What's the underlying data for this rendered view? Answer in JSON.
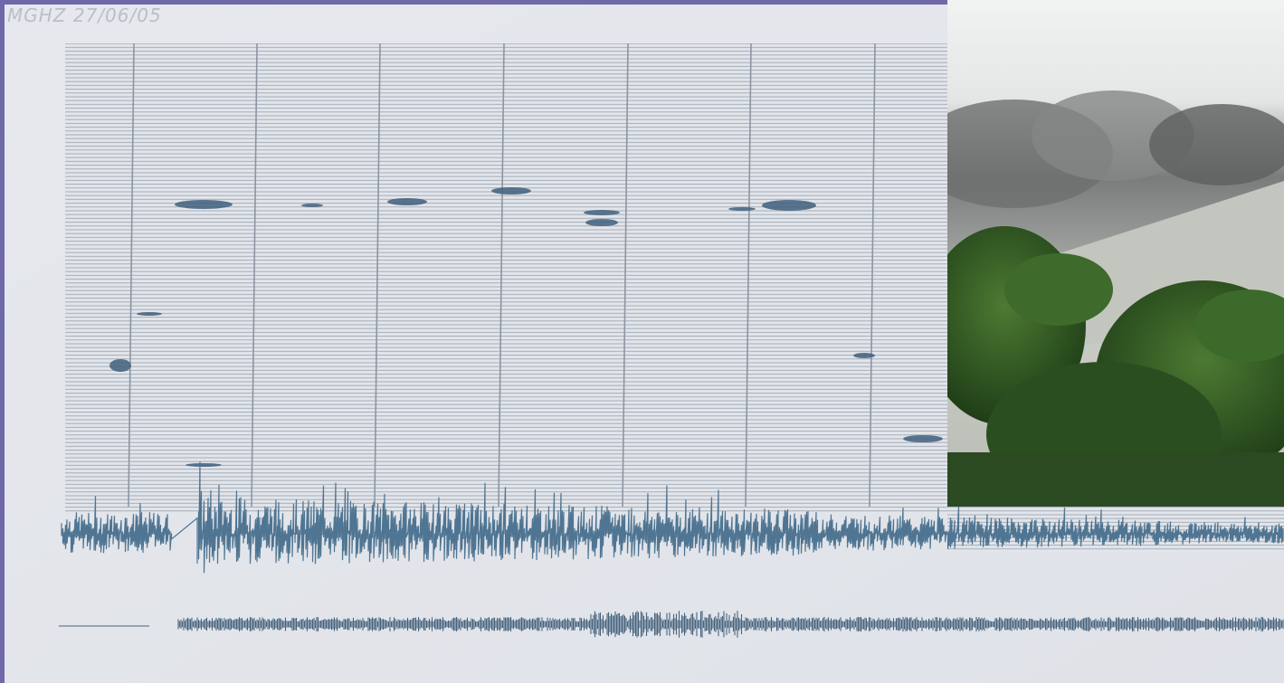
{
  "image": {
    "label": "MGHZ 27/06/05"
  }
}
